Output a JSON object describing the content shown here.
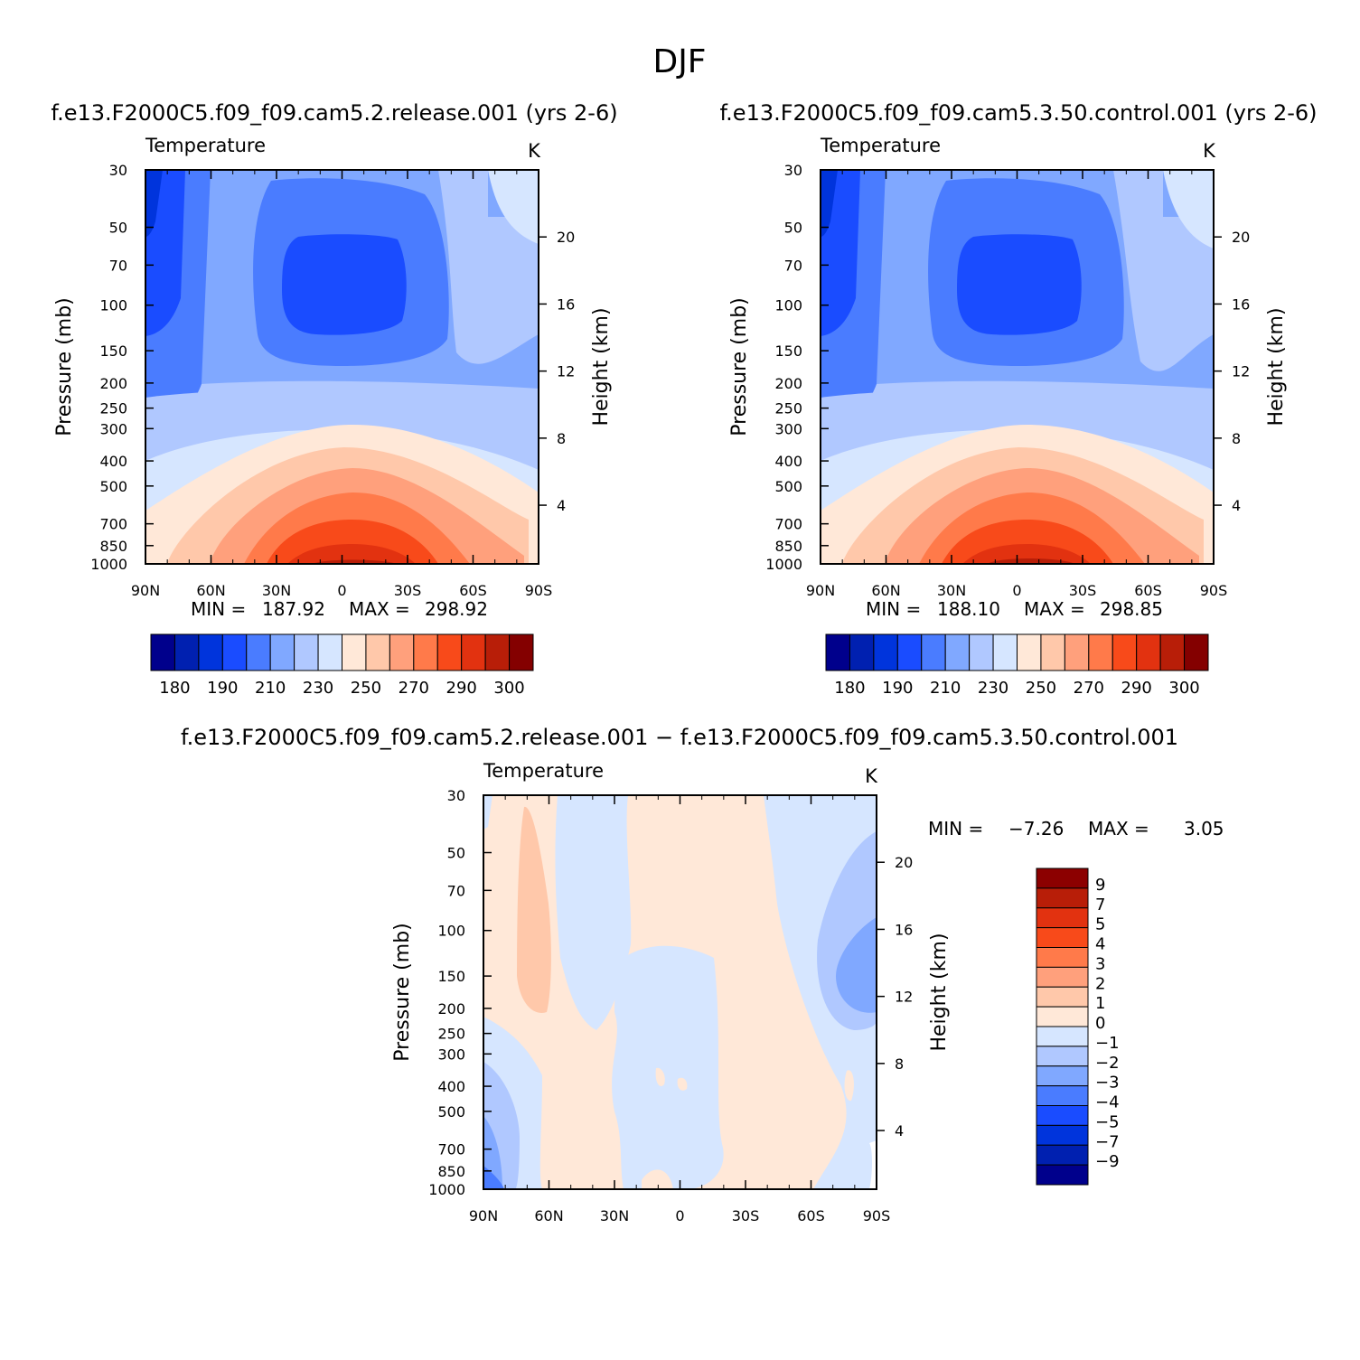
{
  "figure_title": "DJF",
  "chart_data": [
    {
      "type": "heatmap",
      "title": "f.e13.F2000C5.f09_f09.cam5.2.release.001 (yrs 2-6)",
      "variable": "Temperature",
      "units": "K",
      "xlabel": "",
      "ylabel": "Pressure (mb)",
      "y2label": "Height (km)",
      "x_ticks": [
        "90N",
        "60N",
        "30N",
        "0",
        "30S",
        "60S",
        "90S"
      ],
      "y_ticks": [
        "30",
        "50",
        "70",
        "100",
        "150",
        "200",
        "250",
        "300",
        "400",
        "500",
        "700",
        "850",
        "1000"
      ],
      "y_tick_values": [
        30,
        50,
        70,
        100,
        150,
        200,
        250,
        300,
        400,
        500,
        700,
        850,
        1000
      ],
      "y2_ticks": [
        "20",
        "16",
        "12",
        "8",
        "4"
      ],
      "y2_tick_values": [
        20,
        16,
        12,
        8,
        4
      ],
      "ylim": [
        1000,
        30
      ],
      "min_label": "MIN =",
      "min_value": "187.92",
      "max_label": "MAX =",
      "max_value": "298.92",
      "colorbar": {
        "orientation": "horizontal",
        "levels": [
          180,
          185,
          190,
          200,
          210,
          220,
          230,
          240,
          250,
          260,
          270,
          280,
          290,
          295,
          300
        ],
        "labels": [
          "180",
          "190",
          "210",
          "230",
          "250",
          "270",
          "290",
          "300"
        ],
        "colors": [
          "#00008c",
          "#0020b0",
          "#0034dc",
          "#1a4cff",
          "#4a7cff",
          "#80a8ff",
          "#b0c8ff",
          "#d6e6ff",
          "#ffe8d8",
          "#ffc8aa",
          "#ffa07c",
          "#ff7a4a",
          "#f84a1a",
          "#e23210",
          "#b81e08",
          "#840000"
        ]
      }
    },
    {
      "type": "heatmap",
      "title": "f.e13.F2000C5.f09_f09.cam5.3.50.control.001 (yrs 2-6)",
      "variable": "Temperature",
      "units": "K",
      "xlabel": "",
      "ylabel": "Pressure (mb)",
      "y2label": "Height (km)",
      "x_ticks": [
        "90N",
        "60N",
        "30N",
        "0",
        "30S",
        "60S",
        "90S"
      ],
      "y_ticks": [
        "30",
        "50",
        "70",
        "100",
        "150",
        "200",
        "250",
        "300",
        "400",
        "500",
        "700",
        "850",
        "1000"
      ],
      "y_tick_values": [
        30,
        50,
        70,
        100,
        150,
        200,
        250,
        300,
        400,
        500,
        700,
        850,
        1000
      ],
      "y2_ticks": [
        "20",
        "16",
        "12",
        "8",
        "4"
      ],
      "y2_tick_values": [
        20,
        16,
        12,
        8,
        4
      ],
      "ylim": [
        1000,
        30
      ],
      "min_label": "MIN =",
      "min_value": "188.10",
      "max_label": "MAX =",
      "max_value": "298.85",
      "colorbar": {
        "orientation": "horizontal",
        "levels": [
          180,
          185,
          190,
          200,
          210,
          220,
          230,
          240,
          250,
          260,
          270,
          280,
          290,
          295,
          300
        ],
        "labels": [
          "180",
          "190",
          "210",
          "230",
          "250",
          "270",
          "290",
          "300"
        ],
        "colors": [
          "#00008c",
          "#0020b0",
          "#0034dc",
          "#1a4cff",
          "#4a7cff",
          "#80a8ff",
          "#b0c8ff",
          "#d6e6ff",
          "#ffe8d8",
          "#ffc8aa",
          "#ffa07c",
          "#ff7a4a",
          "#f84a1a",
          "#e23210",
          "#b81e08",
          "#840000"
        ]
      }
    },
    {
      "type": "heatmap",
      "title": "f.e13.F2000C5.f09_f09.cam5.2.release.001 − f.e13.F2000C5.f09_f09.cam5.3.50.control.001",
      "variable": "Temperature",
      "units": "K",
      "xlabel": "",
      "ylabel": "Pressure (mb)",
      "y2label": "Height (km)",
      "x_ticks": [
        "90N",
        "60N",
        "30N",
        "0",
        "30S",
        "60S",
        "90S"
      ],
      "y_ticks": [
        "30",
        "50",
        "70",
        "100",
        "150",
        "200",
        "250",
        "300",
        "400",
        "500",
        "700",
        "850",
        "1000"
      ],
      "y_tick_values": [
        30,
        50,
        70,
        100,
        150,
        200,
        250,
        300,
        400,
        500,
        700,
        850,
        1000
      ],
      "y2_ticks": [
        "20",
        "16",
        "12",
        "8",
        "4"
      ],
      "y2_tick_values": [
        20,
        16,
        12,
        8,
        4
      ],
      "ylim": [
        1000,
        30
      ],
      "min_label": "MIN =",
      "min_value": "−7.26",
      "max_label": "MAX =",
      "max_value": "3.05",
      "colorbar": {
        "orientation": "vertical",
        "levels": [
          9,
          7,
          5,
          4,
          3,
          2,
          1,
          0,
          -1,
          -2,
          -3,
          -4,
          -5,
          -7,
          -9
        ],
        "labels": [
          "9",
          "7",
          "5",
          "4",
          "3",
          "2",
          "1",
          "0",
          "−1",
          "−2",
          "−3",
          "−4",
          "−5",
          "−7",
          "−9"
        ],
        "colors": [
          "#8c0000",
          "#b81e08",
          "#e23210",
          "#f84a1a",
          "#ff7a4a",
          "#ffa07c",
          "#ffc8aa",
          "#ffe8d8",
          "#d6e6ff",
          "#b0c8ff",
          "#80a8ff",
          "#4a7cff",
          "#1a4cff",
          "#0034dc",
          "#0020b0",
          "#00008c"
        ]
      }
    }
  ]
}
